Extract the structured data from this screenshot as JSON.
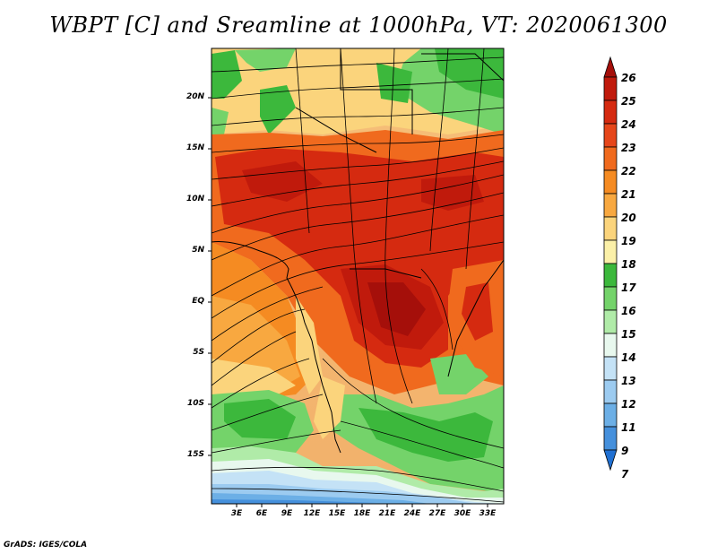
{
  "title": "WBPT [C] and Sreamline at 1000hPa, VT: 2020061300",
  "credit": "GrADS: IGES/COLA",
  "map": {
    "lat_ticks": [
      "20N",
      "15N",
      "10N",
      "5N",
      "EQ",
      "5S",
      "10S",
      "15S"
    ],
    "lon_ticks": [
      "3E",
      "6E",
      "9E",
      "12E",
      "15E",
      "18E",
      "21E",
      "24E",
      "27E",
      "30E",
      "33E"
    ]
  },
  "colorbar": {
    "labels": [
      "26",
      "25",
      "24",
      "23",
      "22",
      "21",
      "20",
      "19",
      "18",
      "17",
      "16",
      "15",
      "14",
      "13",
      "12",
      "11",
      "9",
      "7"
    ],
    "colors": [
      "#a50f0a",
      "#c01a0c",
      "#d52a10",
      "#e6461a",
      "#f06a1e",
      "#f58b22",
      "#f8a840",
      "#fbd47c",
      "#fbf0a8",
      "#3cb83c",
      "#74d36a",
      "#b0eba8",
      "#e8f8ee",
      "#c4e2f6",
      "#9ccbf0",
      "#6cafe6",
      "#4590dc",
      "#2070d2"
    ]
  }
}
